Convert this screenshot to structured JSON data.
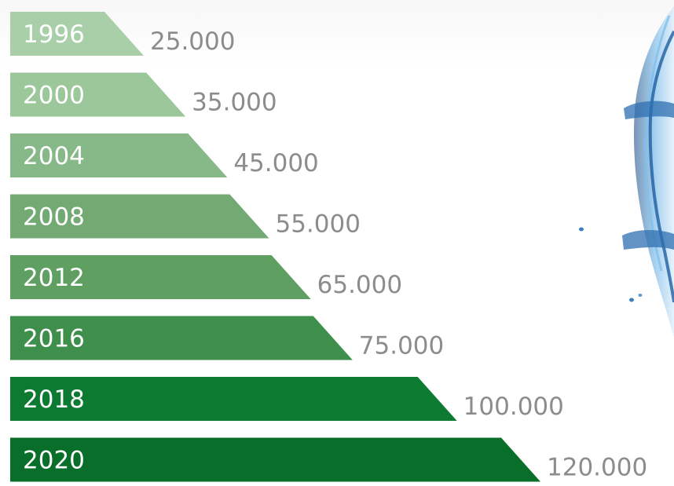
{
  "chart_data": {
    "type": "bar",
    "orientation": "horizontal",
    "categories": [
      "1996",
      "2000",
      "2004",
      "2008",
      "2012",
      "2016",
      "2018",
      "2020"
    ],
    "values": [
      25000,
      35000,
      45000,
      55000,
      65000,
      75000,
      100000,
      120000
    ],
    "value_labels": [
      "25.000",
      "35.000",
      "45.000",
      "55.000",
      "65.000",
      "75.000",
      "100.000",
      "120.000"
    ],
    "title": "",
    "xlabel": "",
    "ylabel": "",
    "grid": false,
    "legend": "none",
    "bar_colors": [
      "#a9cfa9",
      "#9bc79b",
      "#87b887",
      "#73aa73",
      "#5fa062",
      "#3f8f4c",
      "#0d7a31",
      "#0a6e2b"
    ],
    "value_color": "#8c8c8c",
    "label_color": "#ffffff"
  },
  "decoration": {
    "image_name": "water-splash-image"
  }
}
